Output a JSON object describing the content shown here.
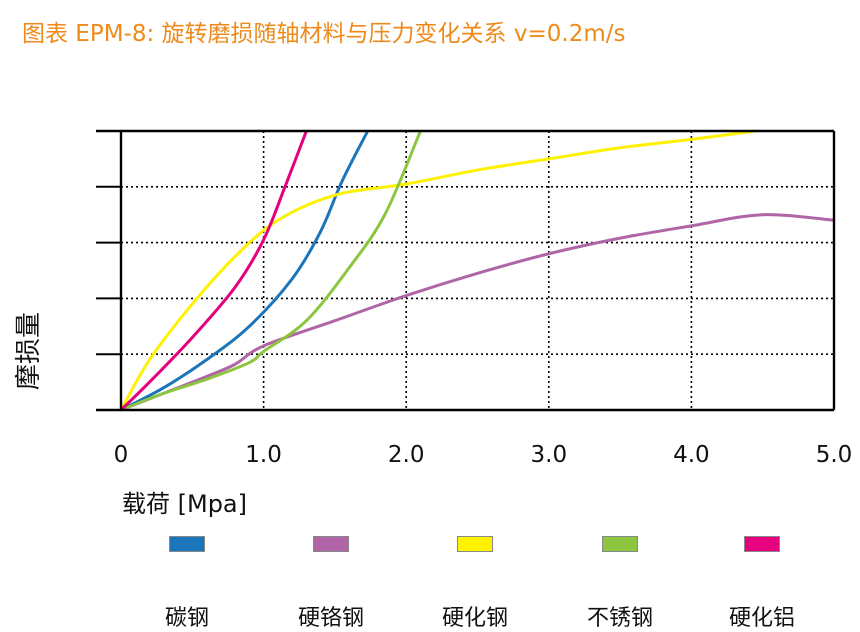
{
  "chart_data": {
    "type": "line",
    "title": "图表 EPM-8: 旋转磨损随轴材料与压力变化关系 v=0.2m/s",
    "xlabel": "载荷 [Mpa]",
    "ylabel": "摩损量",
    "x_ticks": [
      "0",
      "1.0",
      "2.0",
      "3.0",
      "4.0",
      "5.0"
    ],
    "xlim": [
      0,
      5
    ],
    "ylim": [
      0,
      5
    ],
    "grid": true,
    "legend_position": "bottom",
    "series": [
      {
        "name": "碳钢",
        "color": "#1b75bb",
        "points": [
          [
            0,
            0
          ],
          [
            0.3,
            0.4
          ],
          [
            0.6,
            0.9
          ],
          [
            0.9,
            1.5
          ],
          [
            1.2,
            2.35
          ],
          [
            1.4,
            3.2
          ],
          [
            1.55,
            4.1
          ],
          [
            1.73,
            5.0
          ]
        ]
      },
      {
        "name": "硬铬钢",
        "color": "#b065a7",
        "points": [
          [
            0,
            0
          ],
          [
            0.3,
            0.3
          ],
          [
            0.6,
            0.6
          ],
          [
            0.8,
            0.82
          ],
          [
            1.0,
            1.15
          ],
          [
            1.5,
            1.6
          ],
          [
            2.0,
            2.05
          ],
          [
            2.5,
            2.45
          ],
          [
            3.0,
            2.8
          ],
          [
            3.5,
            3.08
          ],
          [
            4.0,
            3.3
          ],
          [
            4.5,
            3.5
          ],
          [
            5.0,
            3.4
          ]
        ]
      },
      {
        "name": "硬化钢",
        "color": "#fff200",
        "points": [
          [
            0,
            0
          ],
          [
            0.2,
            0.9
          ],
          [
            0.5,
            1.9
          ],
          [
            0.8,
            2.75
          ],
          [
            1.1,
            3.4
          ],
          [
            1.5,
            3.85
          ],
          [
            2.0,
            4.05
          ],
          [
            2.5,
            4.3
          ],
          [
            3.0,
            4.5
          ],
          [
            3.5,
            4.7
          ],
          [
            4.0,
            4.85
          ],
          [
            4.45,
            5.0
          ]
        ]
      },
      {
        "name": "不锈钢",
        "color": "#8cc63f",
        "points": [
          [
            0,
            0
          ],
          [
            0.3,
            0.3
          ],
          [
            0.6,
            0.55
          ],
          [
            0.9,
            0.85
          ],
          [
            1.0,
            1.05
          ],
          [
            1.3,
            1.6
          ],
          [
            1.6,
            2.55
          ],
          [
            1.85,
            3.5
          ],
          [
            2.1,
            5.0
          ]
        ]
      },
      {
        "name": "硬化铝",
        "color": "#e6007e",
        "points": [
          [
            0,
            0
          ],
          [
            0.2,
            0.5
          ],
          [
            0.5,
            1.3
          ],
          [
            0.8,
            2.2
          ],
          [
            1.0,
            3.05
          ],
          [
            1.15,
            4.0
          ],
          [
            1.3,
            5.0
          ]
        ]
      }
    ]
  }
}
